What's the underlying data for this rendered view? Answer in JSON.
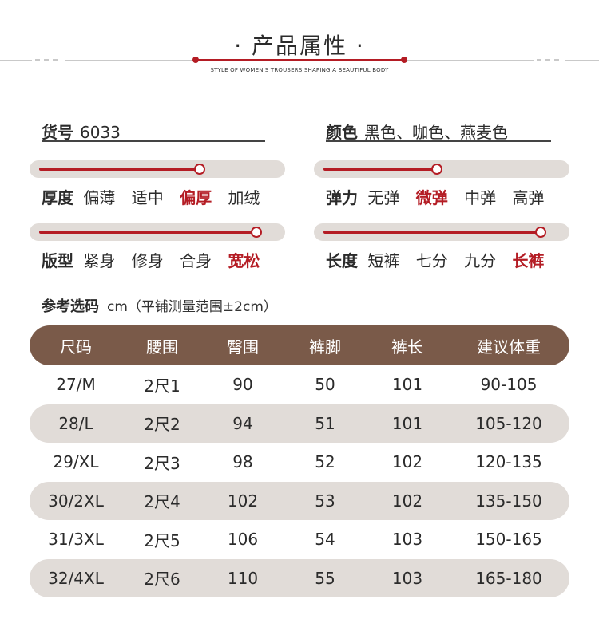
{
  "header": {
    "title": "· 产品属性 ·",
    "subtitle": "STYLE OF WOMEN'S TROUSERS SHAPING A BEAUTIFUL BODY"
  },
  "fields": {
    "item_no": {
      "label": "货号",
      "value": "6033"
    },
    "color": {
      "label": "颜色",
      "value": "黑色、咖色、燕麦色"
    }
  },
  "attributes": {
    "thickness": {
      "label": "厚度",
      "options": [
        "偏薄",
        "适中",
        "偏厚",
        "加绒"
      ],
      "selected_index": 2,
      "level": 0.68
    },
    "elasticity": {
      "label": "弹力",
      "options": [
        "无弹",
        "微弹",
        "中弹",
        "高弹"
      ],
      "selected_index": 1,
      "level": 0.48
    },
    "fit": {
      "label": "版型",
      "options": [
        "紧身",
        "修身",
        "合身",
        "宽松"
      ],
      "selected_index": 3,
      "level": 0.92
    },
    "length": {
      "label": "长度",
      "options": [
        "短裤",
        "七分",
        "九分",
        "长裤"
      ],
      "selected_index": 3,
      "level": 0.92
    }
  },
  "size_guide": {
    "title": "参考选码",
    "note": "cm（平铺测量范围±2cm）",
    "headers": [
      "尺码",
      "腰围",
      "臀围",
      "裤脚",
      "裤长",
      "建议体重"
    ],
    "rows": [
      [
        "27/M",
        "2尺1",
        "90",
        "50",
        "101",
        "90-105"
      ],
      [
        "28/L",
        "2尺2",
        "94",
        "51",
        "101",
        "105-120"
      ],
      [
        "29/XL",
        "2尺3",
        "98",
        "52",
        "102",
        "120-135"
      ],
      [
        "30/2XL",
        "2尺4",
        "102",
        "53",
        "102",
        "135-150"
      ],
      [
        "31/3XL",
        "2尺5",
        "106",
        "54",
        "103",
        "150-165"
      ],
      [
        "32/4XL",
        "2尺6",
        "110",
        "55",
        "103",
        "165-180"
      ]
    ]
  },
  "colors": {
    "accent": "#b41c24",
    "table_header": "#7a5a49",
    "row_shade": "#e1dcd8"
  }
}
